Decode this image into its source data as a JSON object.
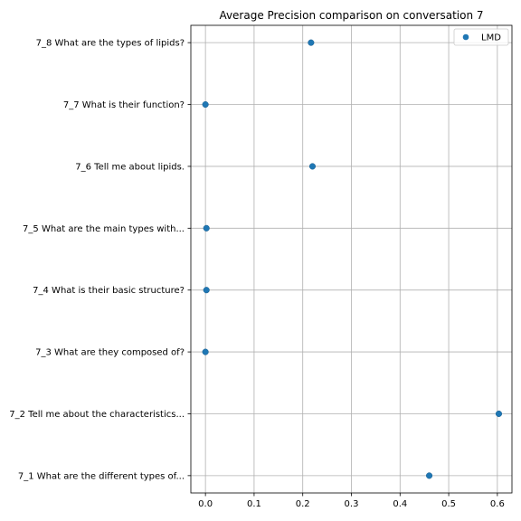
{
  "chart_data": {
    "type": "scatter",
    "title": "Average Precision comparison on conversation 7",
    "xlabel": "",
    "ylabel": "",
    "xlim": [
      -0.03,
      0.63
    ],
    "xticks": [
      0.0,
      0.1,
      0.2,
      0.3,
      0.4,
      0.5,
      0.6
    ],
    "xtick_labels": [
      "0.0",
      "0.1",
      "0.2",
      "0.3",
      "0.4",
      "0.5",
      "0.6"
    ],
    "categories": [
      "7_1 What are the different types of...",
      "7_2 Tell me about the characteristics...",
      "7_3 What are they composed of?",
      "7_4 What is their basic structure?",
      "7_5 What are the main types with...",
      "7_6 Tell me about lipids.",
      "7_7 What is their function?",
      "7_8 What are the types of lipids?"
    ],
    "series": [
      {
        "name": "LMD",
        "color": "#1f77b4",
        "values": [
          0.46,
          0.603,
          0.0,
          0.002,
          0.002,
          0.22,
          0.0,
          0.217
        ]
      }
    ],
    "grid": true,
    "legend_position": "top-right"
  }
}
